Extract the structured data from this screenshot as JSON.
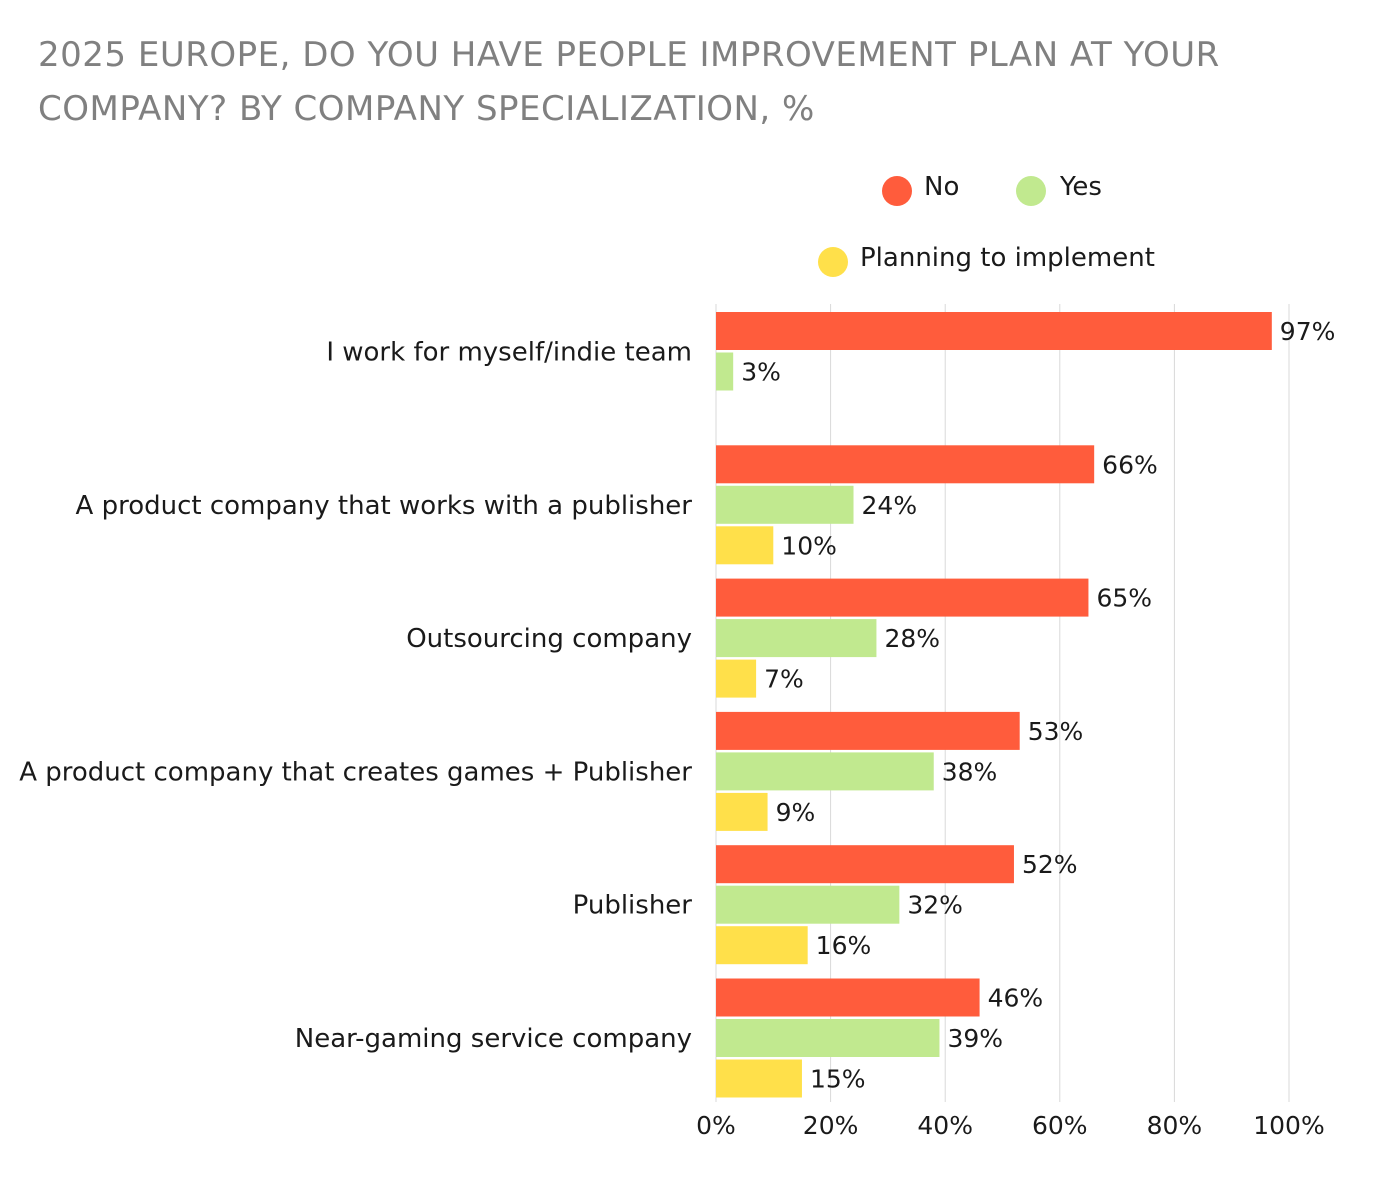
{
  "chart_data": {
    "type": "bar",
    "orientation": "horizontal",
    "title": "2025 EUROPE, DO YOU HAVE PEOPLE IMPROVEMENT PLAN AT YOUR COMPANY? BY COMPANY SPECIALIZATION, %",
    "categories": [
      "I work for myself/indie team",
      "A product company that works with a publisher",
      "Outsourcing company",
      "A product company that creates games + Publisher",
      "Publisher",
      "Near-gaming service company"
    ],
    "series": [
      {
        "name": "No",
        "color": "#ff5c3c",
        "values": [
          97,
          66,
          65,
          53,
          52,
          46
        ]
      },
      {
        "name": "Yes",
        "color": "#c1e98f",
        "values": [
          3,
          24,
          28,
          38,
          32,
          39
        ]
      },
      {
        "name": "Planning to implement",
        "color": "#ffe04a",
        "values": [
          null,
          10,
          7,
          9,
          16,
          15
        ]
      }
    ],
    "xlim": [
      0,
      100
    ],
    "xticks": [
      "0%",
      "20%",
      "40%",
      "60%",
      "80%",
      "100%"
    ],
    "xtick_values": [
      0,
      20,
      40,
      60,
      80,
      100
    ],
    "value_suffix": "%",
    "grid": true,
    "legend_position": "top-right"
  }
}
